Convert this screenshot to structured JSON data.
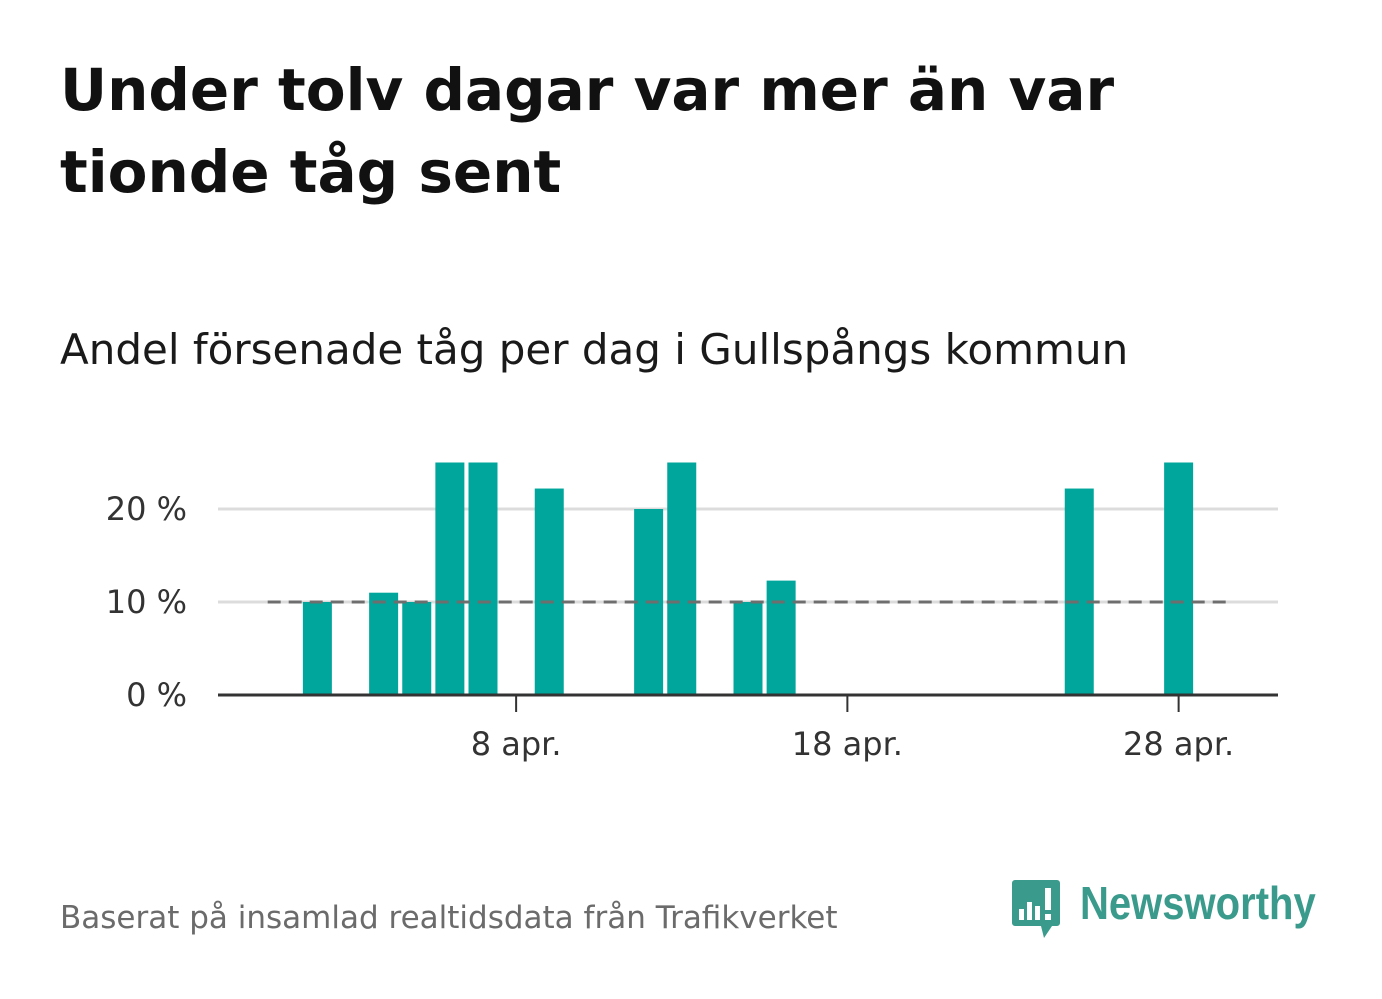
{
  "chart_data": {
    "type": "bar",
    "title": "Under tolv dagar var mer än var tionde tåg sent",
    "subtitle": "Andel försenade tåg per dag i Gullspångs kommun",
    "x": [
      "2 apr.",
      "4 apr.",
      "5 apr.",
      "6 apr.",
      "7 apr.",
      "9 apr.",
      "12 apr.",
      "13 apr.",
      "15 apr.",
      "16 apr.",
      "25 apr.",
      "28 apr."
    ],
    "values": [
      10,
      11,
      10,
      25,
      25,
      22.2,
      20,
      25,
      10,
      12.3,
      22.2,
      25
    ],
    "xlim": [
      "30 mar.",
      "1 maj"
    ],
    "ylim": [
      0,
      25
    ],
    "x_ticks": [
      "8 apr.",
      "18 apr.",
      "28 apr."
    ],
    "y_ticks": [
      0,
      10,
      20
    ],
    "y_tick_labels": [
      "0 %",
      "10 %",
      "20 %"
    ],
    "reference_line": {
      "y": 10,
      "from": "1 apr.",
      "to": "29 apr.",
      "style": "dashed",
      "color": "#6e6e6e"
    },
    "bar_color": "#00a59b",
    "grid": true
  },
  "footer": {
    "source_note": "Baserat på insamlad realtidsdata från Trafikverket",
    "brand_name": "Newsworthy",
    "brand_icon": "newsworthy-logo-icon",
    "brand_color": "#3a9a8c"
  }
}
